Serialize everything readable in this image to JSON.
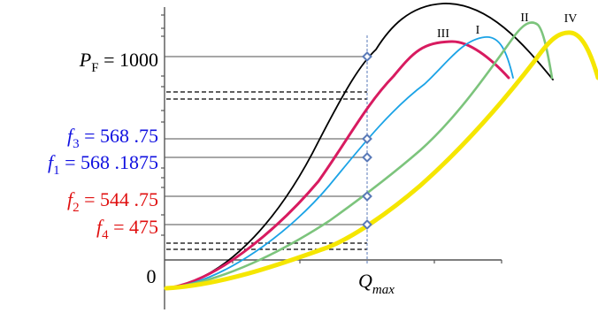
{
  "chart_data": {
    "type": "line",
    "title": "",
    "xlabel": {
      "main": "Q",
      "sub": "max"
    },
    "ylabel": "",
    "origin_label": "0",
    "grid": "horizontal level lines from y-axis to Q_max, with broken y-axis (dashed break band)",
    "legend": "curve roman-numeral labels placed near each curve peak",
    "q_max_line": {
      "style": "dashed",
      "color": "#5a7ab8"
    },
    "levels": [
      {
        "id": "PF",
        "symbol": "P",
        "sub": "F",
        "text": " = 1000",
        "color": "#000000",
        "value": 1000
      },
      {
        "id": "f3",
        "symbol": "f",
        "sub": "3",
        "text": " = 568 .75",
        "color": "#1010e0",
        "value": 568.75
      },
      {
        "id": "f1",
        "symbol": "f",
        "sub": "1",
        "text": " = 568 .1875",
        "color": "#1010e0",
        "value": 568.1875
      },
      {
        "id": "f2",
        "symbol": "f",
        "sub": "2",
        "text": " = 544 .75",
        "color": "#e01010",
        "value": 544.75
      },
      {
        "id": "f4",
        "symbol": "f",
        "sub": "4",
        "text": " = 475",
        "color": "#e01010",
        "value": 475
      }
    ],
    "series": [
      {
        "name": "",
        "color": "#000000",
        "width": 1.8,
        "marker_level": "PF"
      },
      {
        "name": "III",
        "color": "#d81b60",
        "width": 3,
        "marker_level": "f3"
      },
      {
        "name": "I",
        "color": "#1ba3e6",
        "width": 1.8,
        "marker_level": "f1"
      },
      {
        "name": "II",
        "color": "#7cc47c",
        "width": 2.6,
        "marker_level": "f2"
      },
      {
        "name": "IV",
        "color": "#f5e600",
        "width": 5,
        "marker_level": "f4"
      }
    ],
    "marker": {
      "shape": "diamond",
      "stroke": "#5a7ab8",
      "fill": "#ffffff"
    }
  }
}
